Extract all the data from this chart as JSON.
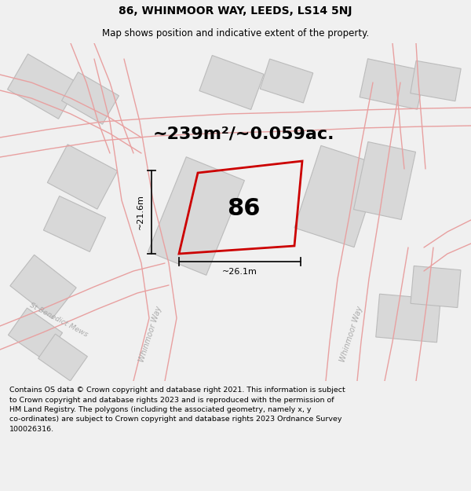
{
  "title_line1": "86, WHINMOOR WAY, LEEDS, LS14 5NJ",
  "title_line2": "Map shows position and indicative extent of the property.",
  "area_label": "~239m²/~0.059ac.",
  "property_number": "86",
  "dim_vertical": "~21.6m",
  "dim_horizontal": "~26.1m",
  "footer_text": "Contains OS data © Crown copyright and database right 2021. This information is subject\nto Crown copyright and database rights 2023 and is reproduced with the permission of\nHM Land Registry. The polygons (including the associated geometry, namely x, y\nco-ordinates) are subject to Crown copyright and database rights 2023 Ordnance Survey\n100026316.",
  "bg_color": "#f0f0f0",
  "map_bg": "#ffffff",
  "road_line_color": "#e8a0a0",
  "building_fill": "#d8d8d8",
  "building_edge": "#bbbbbb",
  "property_color": "#cc0000",
  "dim_line_color": "#111111",
  "title_color": "#000000",
  "footer_color": "#000000",
  "title_fontsize": 10,
  "subtitle_fontsize": 8.5,
  "area_fontsize": 16,
  "number_fontsize": 22,
  "dim_fontsize": 8,
  "road_label_fontsize": 7,
  "footer_fontsize": 6.8
}
